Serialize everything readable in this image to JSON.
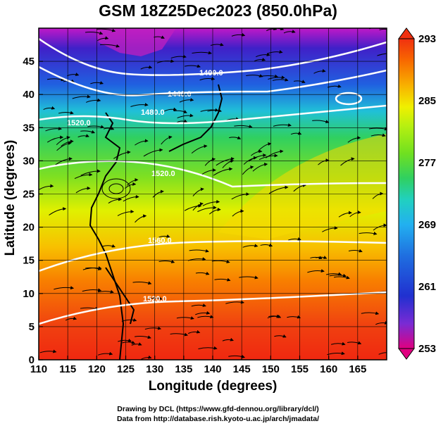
{
  "title": "GSM 18Z25Dec2023 (850.0hPa)",
  "x_label": "Longitude (degrees)",
  "y_label": "Latitude  (degrees)",
  "credits": [
    "Drawing by DCL (https://www.gfd-dennou.org/library/dcl/)",
    "Data from http://database.rish.kyoto-u.ac.jp/arch/jmadata/"
  ],
  "x_ticks": [
    110,
    115,
    120,
    125,
    130,
    135,
    140,
    145,
    150,
    155,
    160,
    165
  ],
  "y_ticks": [
    0,
    5,
    10,
    15,
    20,
    25,
    30,
    35,
    40,
    45
  ],
  "extent": {
    "lon": [
      110,
      170
    ],
    "lat": [
      0,
      50
    ]
  },
  "colorbar": {
    "labels": [
      "293",
      "285",
      "277",
      "269",
      "261",
      "253"
    ],
    "range": [
      253,
      293
    ],
    "colors": [
      "#e00080",
      "#7a2bd4",
      "#2030d0",
      "#1f6fe0",
      "#22b0f0",
      "#21d0c0",
      "#30d060",
      "#70e020",
      "#b8f010",
      "#f0f000",
      "#f8b000",
      "#f86800",
      "#f03010"
    ]
  },
  "contour_labels": [
    "1400.0",
    "1440.0",
    "1480.0",
    "1520.0",
    "1520.0",
    "1560.0",
    "1520.0"
  ]
}
